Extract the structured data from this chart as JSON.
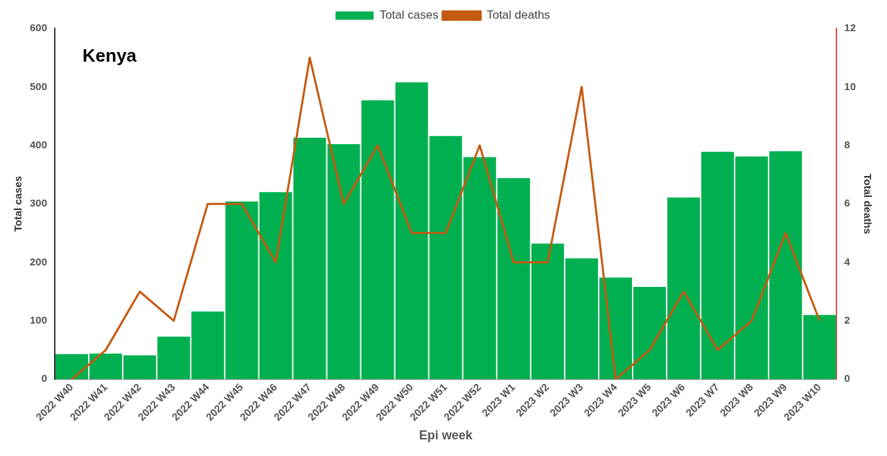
{
  "chart_data": {
    "type": "bar",
    "title": "Kenya",
    "xlabel": "Epi week",
    "ylabel": "Total cases",
    "y2label": "Total deaths",
    "categories": [
      "2022 W40",
      "2022 W41",
      "2022 W42",
      "2022 W43",
      "2022 W44",
      "2022 W45",
      "2022 W46",
      "2022 W47",
      "2022 W48",
      "2022 W49",
      "2022 W50",
      "2022 W51",
      "2022 W52",
      "2023 W1",
      "2023 W2",
      "2023 W3",
      "2023 W4",
      "2023 W5",
      "2023 W6",
      "2023 W7",
      "2023 W8",
      "2023 W9",
      "2023 W10"
    ],
    "series": [
      {
        "name": "Total cases",
        "color": "#00b050",
        "values": [
          43,
          44,
          41,
          73,
          116,
          304,
          320,
          413,
          402,
          477,
          508,
          416,
          380,
          344,
          232,
          207,
          174,
          158,
          311,
          389,
          381,
          390,
          110
        ]
      },
      {
        "name": "Total deaths",
        "type": "line",
        "axis": "y2",
        "color": "#c55a11",
        "values": [
          0,
          1,
          3,
          2,
          6,
          6,
          4,
          11,
          6,
          8,
          5,
          5,
          8,
          4,
          4,
          10,
          0,
          1,
          3,
          1,
          2,
          5,
          2
        ]
      }
    ],
    "ylim": [
      0,
      600
    ],
    "yticks": [
      0,
      100,
      200,
      300,
      400,
      500,
      600
    ],
    "y2lim": [
      0,
      12
    ],
    "y2ticks": [
      0,
      2,
      4,
      6,
      8,
      10,
      12
    ],
    "grid": false,
    "legend": "top",
    "marker": "none",
    "line_style": "solid"
  }
}
